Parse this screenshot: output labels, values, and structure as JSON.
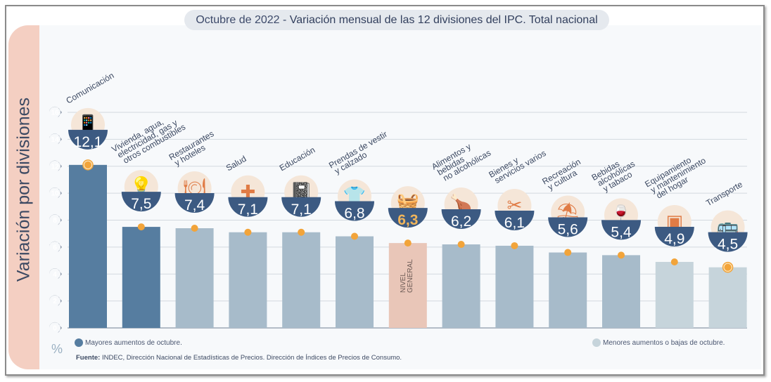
{
  "title": {
    "prefix": "Octubre de 2022 - ",
    "main": "Variación mensual de las 12 divisiones del IPC. Total nacional"
  },
  "legend": {
    "high": "Mayores aumentos de octubre.",
    "low": "Menores aumentos o bajas de octubre.",
    "high_color": "#567da0",
    "low_color": "#c5d3da"
  },
  "source": {
    "label": "Fuente:",
    "text": " INDEC, Dirección Nacional de Estadísticas de Precios. Dirección de Índices de Precios de Consumo."
  },
  "colors": {
    "dark": "#567da0",
    "mid": "#a7bbca",
    "light": "#c6d4db",
    "general": "#e9c6b8",
    "badge": "#3c5a82",
    "marker": "#f2a43a"
  },
  "chart_data": {
    "type": "bar",
    "ylabel": "Variación por divisiones",
    "yunit": "%",
    "ylim": [
      0,
      16
    ],
    "yticks": [
      0,
      2,
      4,
      6,
      8,
      10,
      12,
      14,
      16
    ],
    "grid": true,
    "categories": [
      [
        "Comunicación"
      ],
      [
        "Vivienda, agua,",
        "electricidad, gas y",
        "otros combustibles"
      ],
      [
        "Restaurantes",
        "y hoteles"
      ],
      [
        "Salud"
      ],
      [
        "Educación"
      ],
      [
        "Prendas de vestir",
        "y calzado"
      ],
      [
        ""
      ],
      [
        "Alimentos y",
        "bebidas",
        "no alcohólicas"
      ],
      [
        "Bienes y",
        "servicios varios"
      ],
      [
        "Recreación",
        "y cultura"
      ],
      [
        "Bebidas",
        "alcohólicas",
        "y tabaco"
      ],
      [
        "Equipamiento",
        "y mantenimiento",
        "del hogar"
      ],
      [
        "Transporte"
      ]
    ],
    "values": [
      12.1,
      7.5,
      7.4,
      7.1,
      7.1,
      6.8,
      6.3,
      6.2,
      6.1,
      5.6,
      5.4,
      4.9,
      4.5
    ],
    "value_labels": [
      "12,1",
      "7,5",
      "7,4",
      "7,1",
      "7,1",
      "6,8",
      "6,3",
      "6,2",
      "6,1",
      "5,6",
      "5,4",
      "4,9",
      "4,5"
    ],
    "groups": [
      "dark",
      "dark",
      "mid",
      "mid",
      "mid",
      "mid",
      "general",
      "mid",
      "mid",
      "mid",
      "mid",
      "light",
      "light"
    ],
    "icons": [
      "phone-icon",
      "bulb-icon",
      "plate-icon",
      "health-icon",
      "notebook-icon",
      "shirt-icon",
      "basket-icon",
      "chicken-icon",
      "scissors-icon",
      "umbrella-icon",
      "wine-icon",
      "washer-icon",
      "sube-card-icon"
    ],
    "general_label": [
      "NIVEL",
      "GENERAL"
    ]
  }
}
